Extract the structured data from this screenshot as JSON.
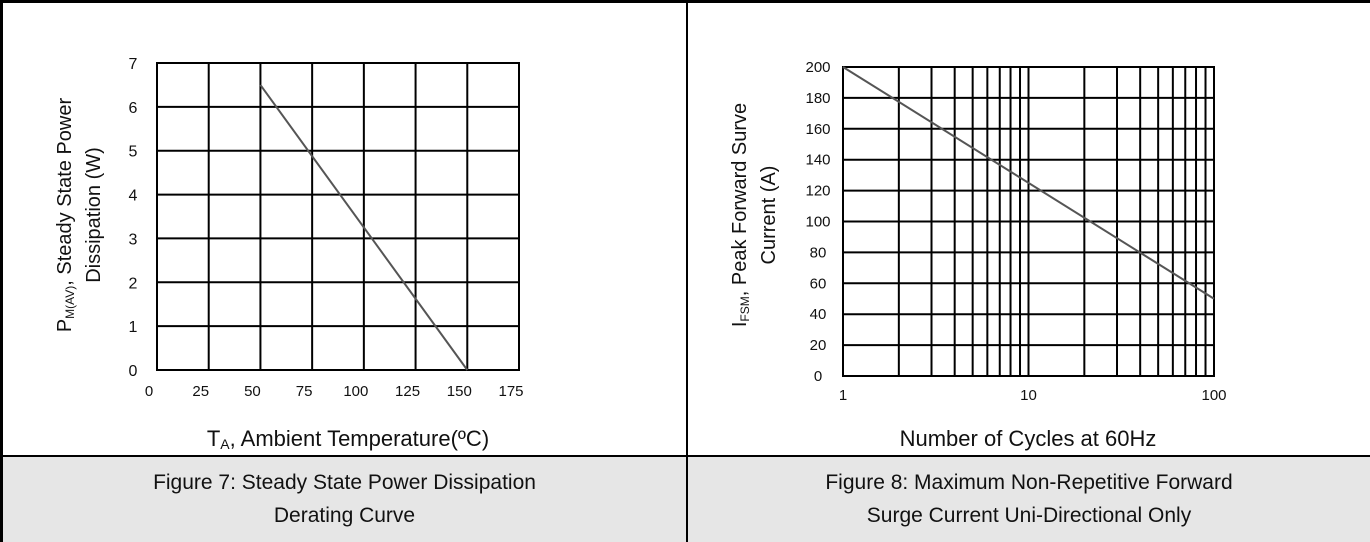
{
  "chart_data": [
    {
      "type": "line",
      "ylabel_main": "P",
      "ylabel_sub": "M(AV)",
      "ylabel_rest": ", Steady State Power",
      "ylabel_line2": "Dissipation (W)",
      "xlabel_main": "T",
      "xlabel_sub": "A",
      "xlabel_rest": ", Ambient Temperature(ºC)",
      "xlim": [
        0,
        175
      ],
      "ylim": [
        0,
        7
      ],
      "xticks": [
        0,
        25,
        50,
        75,
        100,
        125,
        150,
        175
      ],
      "yticks": [
        0,
        1,
        2,
        3,
        4,
        5,
        6,
        7
      ],
      "xtick_labels": [
        "0",
        "25",
        "50",
        "75",
        "100",
        "125",
        "150",
        "175"
      ],
      "ytick_labels": [
        "0",
        "1",
        "2",
        "3",
        "4",
        "5",
        "6",
        "7"
      ],
      "grid": true,
      "x": [
        50,
        150
      ],
      "y": [
        6.5,
        0
      ],
      "line_color": "#555555"
    },
    {
      "type": "line",
      "ylabel_main": "I",
      "ylabel_sub": "FSM",
      "ylabel_rest": ", Peak Forward Surve",
      "ylabel_line2": "Current (A)",
      "xlabel": "Number of Cycles at 60Hz",
      "xscale": "log",
      "xlim": [
        1,
        100
      ],
      "ylim": [
        0,
        200
      ],
      "xticks": [
        1,
        10,
        100
      ],
      "xtick_labels": [
        "1",
        "10",
        "100"
      ],
      "yticks": [
        0,
        20,
        40,
        60,
        80,
        100,
        120,
        140,
        160,
        180,
        200
      ],
      "ytick_labels": [
        "0",
        "20",
        "40",
        "60",
        "80",
        "100",
        "120",
        "140",
        "160",
        "180",
        "200"
      ],
      "grid": true,
      "x": [
        1,
        100
      ],
      "y": [
        200,
        50
      ],
      "line_color": "#555555"
    }
  ],
  "captions": {
    "fig7_line1": "Figure 7: Steady State Power Dissipation",
    "fig7_line2": "Derating Curve",
    "fig8_line1": "Figure 8: Maximum Non-Repetitive Forward",
    "fig8_line2": "Surge Current Uni-Directional Only"
  }
}
